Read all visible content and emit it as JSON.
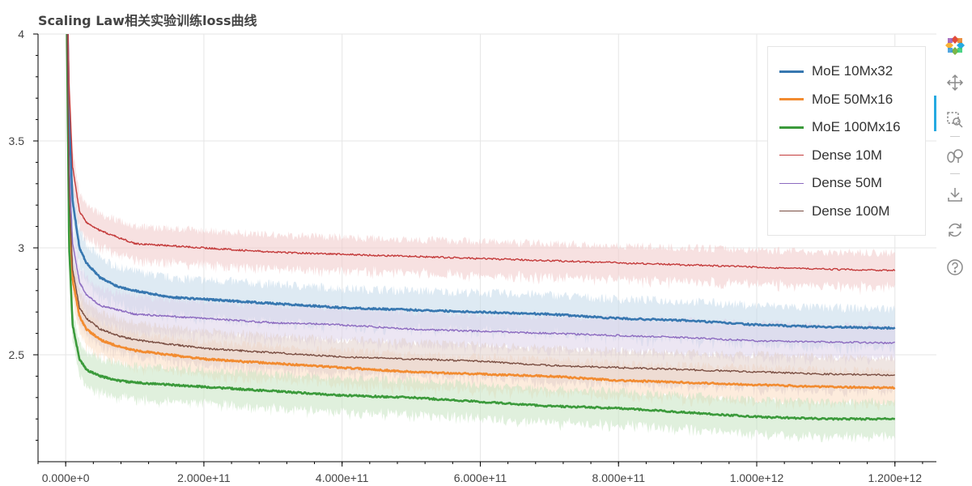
{
  "chart_data": {
    "type": "line",
    "title": "Scaling Law相关实验训练loss曲线",
    "xlabel": "",
    "ylabel": "",
    "xlim": [
      -40000000000,
      1260000000000
    ],
    "ylim": [
      2.0,
      4.0
    ],
    "x_ticks": [
      0,
      200000000000,
      400000000000,
      600000000000,
      800000000000,
      1000000000000,
      1200000000000
    ],
    "x_tick_labels": [
      "0.000e+0",
      "2.000e+11",
      "4.000e+11",
      "6.000e+11",
      "8.000e+11",
      "1.000e+12",
      "1.200e+12"
    ],
    "y_ticks": [
      2.5,
      3,
      3.5,
      4
    ],
    "y_tick_labels": [
      "2.5",
      "3",
      "3.5",
      "4"
    ],
    "grid": true,
    "legend_position": "top-right",
    "x": [
      0,
      5000000000,
      10000000000,
      20000000000,
      30000000000,
      50000000000,
      75000000000,
      100000000000,
      150000000000,
      200000000000,
      300000000000,
      400000000000,
      500000000000,
      600000000000,
      700000000000,
      800000000000,
      900000000000,
      1000000000000,
      1100000000000,
      1200000000000
    ],
    "series": [
      {
        "name": "MoE 10Mx32",
        "color": "#3777b0",
        "band_color": "#c3d8ea",
        "band_halfwidth": 0.09,
        "line_width": 2.6,
        "values": [
          4.6,
          3.6,
          3.22,
          3.0,
          2.93,
          2.86,
          2.82,
          2.8,
          2.77,
          2.76,
          2.74,
          2.72,
          2.71,
          2.7,
          2.69,
          2.67,
          2.66,
          2.64,
          2.63,
          2.625
        ]
      },
      {
        "name": "MoE 50Mx16",
        "color": "#f28b30",
        "band_color": "#fbdcc1",
        "band_halfwidth": 0.08,
        "line_width": 2.6,
        "values": [
          4.6,
          3.2,
          2.85,
          2.68,
          2.62,
          2.57,
          2.54,
          2.52,
          2.5,
          2.48,
          2.46,
          2.44,
          2.42,
          2.41,
          2.4,
          2.38,
          2.37,
          2.36,
          2.35,
          2.345
        ]
      },
      {
        "name": "MoE 100Mx16",
        "color": "#3b9a3b",
        "band_color": "#c6e4c1",
        "band_halfwidth": 0.08,
        "line_width": 2.6,
        "values": [
          4.6,
          3.0,
          2.64,
          2.48,
          2.43,
          2.4,
          2.38,
          2.37,
          2.36,
          2.35,
          2.33,
          2.31,
          2.3,
          2.28,
          2.26,
          2.25,
          2.23,
          2.21,
          2.2,
          2.2
        ]
      },
      {
        "name": "Dense 10M",
        "color": "#c43b3b",
        "band_color": "#f0c9c9",
        "band_halfwidth": 0.08,
        "line_width": 1.4,
        "values": [
          4.6,
          3.75,
          3.38,
          3.17,
          3.12,
          3.08,
          3.05,
          3.02,
          3.01,
          3.0,
          2.98,
          2.97,
          2.96,
          2.95,
          2.94,
          2.93,
          2.92,
          2.91,
          2.9,
          2.895
        ]
      },
      {
        "name": "Dense 50M",
        "color": "#8c6bc0",
        "band_color": "#dcd2ea",
        "band_halfwidth": 0.08,
        "line_width": 1.4,
        "values": [
          4.6,
          3.4,
          3.02,
          2.84,
          2.78,
          2.73,
          2.71,
          2.69,
          2.68,
          2.67,
          2.65,
          2.64,
          2.62,
          2.61,
          2.6,
          2.59,
          2.58,
          2.565,
          2.56,
          2.555
        ]
      },
      {
        "name": "Dense 100M",
        "color": "#7a4e42",
        "band_color": "#e1cfca",
        "band_halfwidth": 0.08,
        "line_width": 1.4,
        "values": [
          4.6,
          3.25,
          2.9,
          2.72,
          2.67,
          2.62,
          2.59,
          2.57,
          2.55,
          2.53,
          2.51,
          2.49,
          2.48,
          2.47,
          2.45,
          2.44,
          2.43,
          2.42,
          2.41,
          2.405
        ]
      }
    ]
  },
  "toolbar": {
    "tools": [
      "bokeh-logo-icon",
      "pan-icon",
      "box-zoom-icon",
      "wheel-zoom-icon",
      "save-icon",
      "reset-icon",
      "help-icon"
    ]
  }
}
